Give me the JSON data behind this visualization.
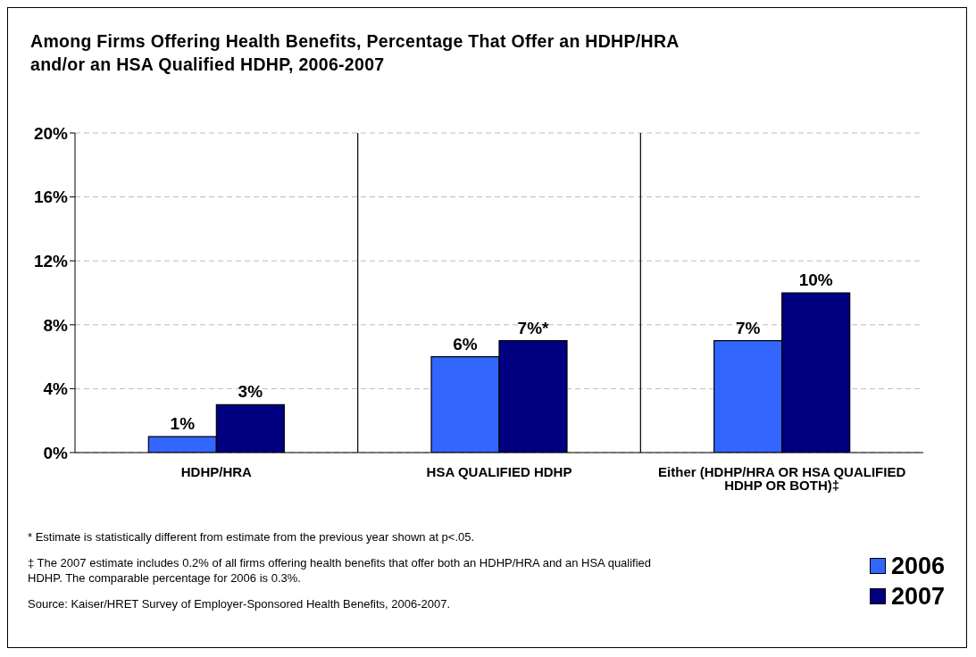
{
  "chart_data": {
    "type": "bar",
    "title": "Among Firms Offering Health Benefits, Percentage That Offer an HDHP/HRA and/or an HSA Qualified HDHP, 2006-2007",
    "categories": [
      "HDHP/HRA",
      "HSA QUALIFIED HDHP",
      "Either (HDHP/HRA OR HSA QUALIFIED HDHP OR BOTH)‡"
    ],
    "series": [
      {
        "name": "2006",
        "color": "#3366ff",
        "values": [
          1,
          6,
          7
        ],
        "value_labels": [
          "1%",
          "6%",
          "7%"
        ]
      },
      {
        "name": "2007",
        "color": "#000080",
        "values": [
          3,
          7,
          10
        ],
        "value_labels": [
          "3%",
          "7%*",
          "10%"
        ]
      }
    ],
    "ylim": [
      0,
      20
    ],
    "yticks": [
      {
        "value": 0,
        "label": "0%"
      },
      {
        "value": 4,
        "label": "4%"
      },
      {
        "value": 8,
        "label": "8%"
      },
      {
        "value": 12,
        "label": "12%"
      },
      {
        "value": 16,
        "label": "16%"
      },
      {
        "value": 20,
        "label": "20%"
      }
    ],
    "grid": true,
    "legend": "bottom right",
    "annotations": [
      "* Estimate is statistically different from estimate from the previous year shown at p<.05.",
      "‡ The 2007 estimate includes 0.2% of all firms offering health benefits that offer both an HDHP/HRA and an HSA qualified HDHP. The comparable percentage for 2006 is 0.3%.",
      "Source: Kaiser/HRET Survey of Employer-Sponsored Health Benefits, 2006-2007."
    ]
  }
}
